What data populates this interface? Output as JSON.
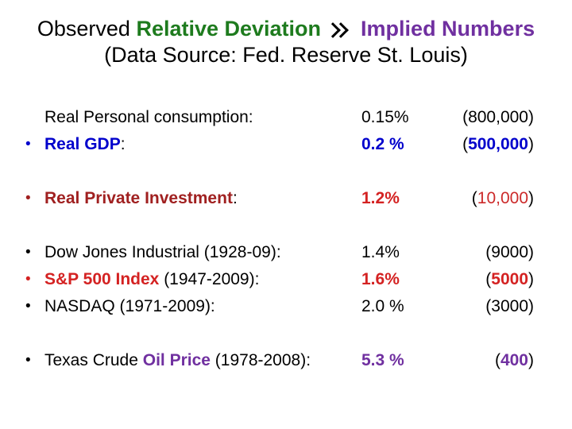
{
  "slide": {
    "title": {
      "part1": "Observed ",
      "part2": "Relative Deviation",
      "separator_glyph": "》",
      "part3": "Implied Numbers",
      "subtitle": "(Data Source: Fed. Reserve St. Louis)"
    },
    "colors": {
      "green": "#1e7b1e",
      "purple": "#7030a0",
      "blue": "#0000cc",
      "dark_red": "#a02020",
      "red": "#d42222",
      "black": "#000000"
    },
    "columns": [
      "item",
      "relative_deviation_percent",
      "implied_number"
    ],
    "rows": [
      {
        "bullet": "",
        "l1": "Real Personal consumption:",
        "pct": "0.15%",
        "open": "(",
        "num": "800,000",
        "close": ")"
      },
      {
        "bullet": "•",
        "l1": "Real GDP",
        "l2": ":",
        "pct": "0.2 %",
        "open": "(",
        "num": "500,000",
        "close": ")"
      },
      {
        "bullet": "•",
        "l1": "Real Private Investment",
        "l2": ":",
        "pct": "1.2%",
        "open": "(",
        "num": "10,000",
        "close": ")"
      },
      {
        "bullet": "•",
        "l1": "Dow Jones Industrial (1928-09):",
        "pct": "1.4%",
        "open": "(",
        "num": "9000",
        "close": ")"
      },
      {
        "bullet": "•",
        "l1": "S&P 500 Index",
        "l2": " (1947-2009):",
        "pct": "1.6%",
        "open": "(",
        "num": "5000",
        "close": ")"
      },
      {
        "bullet": "•",
        "l1": "NASDAQ (1971-2009):",
        "pct": "2.0 %",
        "open": "(",
        "num": "3000",
        "close": ")"
      },
      {
        "bullet": "•",
        "l1": "Texas Crude ",
        "l2": "Oil Price",
        "l3": " (1978-2008):",
        "pct": "5.3 %",
        "open": "(",
        "num": "400",
        "close": ")"
      }
    ]
  }
}
